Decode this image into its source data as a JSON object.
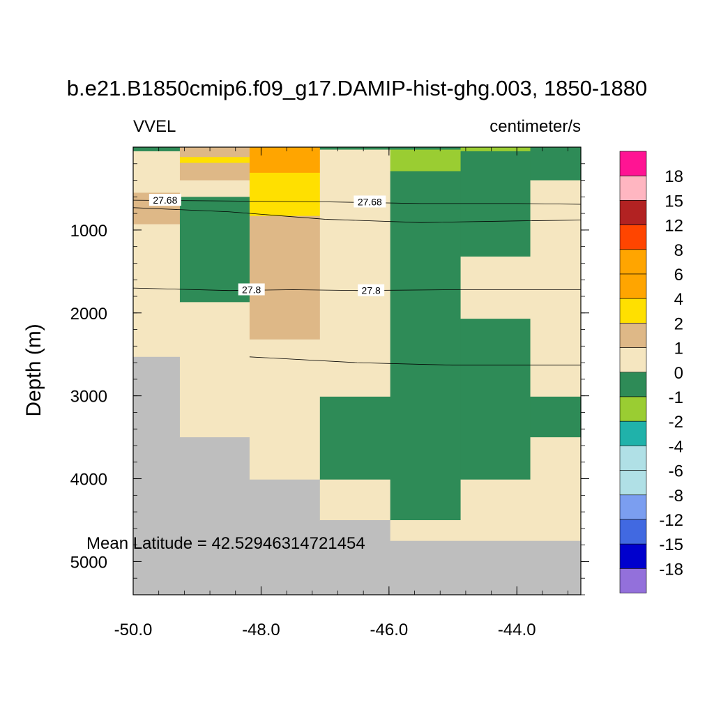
{
  "chart_data": {
    "type": "heatmap",
    "title": "b.e21.B1850cmip6.f09_g17.DAMIP-hist-ghg.003, 1850-1880",
    "left_label": "VVEL",
    "right_label": "centimeter/s",
    "ylabel": "Depth (m)",
    "annotation": "Mean Latitude = 42.52946314721454",
    "xlim": [
      -50.0,
      -43.0
    ],
    "ylim": [
      5400,
      0
    ],
    "x_ticks": [
      -50.0,
      -48.0,
      -46.0,
      -44.0
    ],
    "x_tick_labels": [
      "-50.0",
      "-48.0",
      "-46.0",
      "-44.0"
    ],
    "y_ticks": [
      1000,
      2000,
      3000,
      4000,
      5000
    ],
    "y_tick_labels": [
      "1000",
      "2000",
      "3000",
      "4000",
      "5000"
    ],
    "columns": [
      {
        "x0": -50.0,
        "x1": -49.27,
        "cells": [
          {
            "d0": 0,
            "d1": 50,
            "level": -1
          },
          {
            "d0": 50,
            "d1": 550,
            "level": 0
          },
          {
            "d0": 550,
            "d1": 930,
            "level": 1
          },
          {
            "d0": 930,
            "d1": 2530,
            "level": 0
          },
          {
            "d0": 2530,
            "d1": 5400,
            "level": "land"
          }
        ]
      },
      {
        "x0": -49.27,
        "x1": -48.18,
        "cells": [
          {
            "d0": 0,
            "d1": 120,
            "level": 1
          },
          {
            "d0": 120,
            "d1": 190,
            "level": 2
          },
          {
            "d0": 190,
            "d1": 400,
            "level": 1
          },
          {
            "d0": 400,
            "d1": 600,
            "level": 0
          },
          {
            "d0": 600,
            "d1": 1870,
            "level": -1
          },
          {
            "d0": 1870,
            "d1": 3500,
            "level": 0
          },
          {
            "d0": 3500,
            "d1": 5400,
            "level": "land"
          }
        ]
      },
      {
        "x0": -48.18,
        "x1": -47.08,
        "cells": [
          {
            "d0": 0,
            "d1": 310,
            "level": 4
          },
          {
            "d0": 310,
            "d1": 830,
            "level": 2
          },
          {
            "d0": 830,
            "d1": 2320,
            "level": 1
          },
          {
            "d0": 2320,
            "d1": 4010,
            "level": 0
          },
          {
            "d0": 4010,
            "d1": 5400,
            "level": "land"
          }
        ]
      },
      {
        "x0": -47.08,
        "x1": -45.98,
        "cells": [
          {
            "d0": 0,
            "d1": 30,
            "level": -1
          },
          {
            "d0": 30,
            "d1": 3010,
            "level": 0
          },
          {
            "d0": 3010,
            "d1": 4010,
            "level": -1
          },
          {
            "d0": 4010,
            "d1": 4500,
            "level": 0
          },
          {
            "d0": 4500,
            "d1": 5400,
            "level": "land"
          }
        ]
      },
      {
        "x0": -45.98,
        "x1": -44.88,
        "cells": [
          {
            "d0": 0,
            "d1": 30,
            "level": -1
          },
          {
            "d0": 30,
            "d1": 290,
            "level": -0.5
          },
          {
            "d0": 290,
            "d1": 4500,
            "level": -1
          },
          {
            "d0": 4500,
            "d1": 4750,
            "level": 0
          },
          {
            "d0": 4750,
            "d1": 5400,
            "level": "land"
          }
        ]
      },
      {
        "x0": -44.88,
        "x1": -43.79,
        "cells": [
          {
            "d0": 0,
            "d1": 50,
            "level": -0.5
          },
          {
            "d0": 50,
            "d1": 1320,
            "level": -1
          },
          {
            "d0": 1320,
            "d1": 2070,
            "level": 0
          },
          {
            "d0": 2070,
            "d1": 4010,
            "level": -1
          },
          {
            "d0": 4010,
            "d1": 4750,
            "level": 0
          },
          {
            "d0": 4750,
            "d1": 5400,
            "level": "land"
          }
        ]
      },
      {
        "x0": -43.79,
        "x1": -43.0,
        "cells": [
          {
            "d0": 0,
            "d1": 400,
            "level": -1
          },
          {
            "d0": 400,
            "d1": 3010,
            "level": 0
          },
          {
            "d0": 3010,
            "d1": 3500,
            "level": -1
          },
          {
            "d0": 3500,
            "d1": 4750,
            "level": 0
          },
          {
            "d0": 4750,
            "d1": 5400,
            "level": "land"
          }
        ]
      }
    ],
    "contours": [
      {
        "label": "27.68",
        "points": [
          [
            -50.0,
            640
          ],
          [
            -48.5,
            650
          ],
          [
            -47.0,
            660
          ],
          [
            -45.5,
            680
          ],
          [
            -44.0,
            680
          ],
          [
            -43.0,
            690
          ]
        ],
        "label_positions": [
          [
            -49.5,
            640
          ],
          [
            -46.3,
            660
          ]
        ]
      },
      {
        "label": "",
        "points": [
          [
            -50.0,
            730
          ],
          [
            -48.5,
            780
          ],
          [
            -47.0,
            870
          ],
          [
            -45.5,
            910
          ],
          [
            -44.0,
            890
          ],
          [
            -43.0,
            880
          ]
        ],
        "label_positions": []
      },
      {
        "label": "27.8",
        "points": [
          [
            -50.0,
            1700
          ],
          [
            -48.5,
            1730
          ],
          [
            -47.5,
            1720
          ],
          [
            -46.5,
            1730
          ],
          [
            -45.0,
            1720
          ],
          [
            -43.0,
            1720
          ]
        ],
        "label_positions": [
          [
            -48.15,
            1720
          ],
          [
            -46.28,
            1730
          ]
        ]
      },
      {
        "label": "",
        "points": [
          [
            -48.18,
            2530
          ],
          [
            -46.5,
            2600
          ],
          [
            -45.0,
            2630
          ],
          [
            -43.0,
            2630
          ]
        ],
        "label_positions": []
      }
    ],
    "colorbar": {
      "labels": [
        "18",
        "15",
        "12",
        "8",
        "6",
        "4",
        "2",
        "1",
        "0",
        "-1",
        "-2",
        "-4",
        "-6",
        "-8",
        "-12",
        "-15",
        "-18"
      ],
      "colors": [
        "#ff1493",
        "#ffb6c1",
        "#b22222",
        "#ff4500",
        "#ffa500",
        "#ffa500",
        "#ffe000",
        "#deb887",
        "#f5e6c0",
        "#2e8b57",
        "#9acd32",
        "#20b2aa",
        "#b0e0e6",
        "#b0e0e6",
        "#7b9ef0",
        "#4169e1",
        "#0000cd",
        "#9370db"
      ]
    },
    "level_colors": {
      "4": "#ffa500",
      "2": "#ffe000",
      "1": "#deb887",
      "0": "#f5e6c0",
      "-0.5": "#9acd32",
      "-1": "#2e8b57",
      "land": "#bebebe"
    }
  }
}
